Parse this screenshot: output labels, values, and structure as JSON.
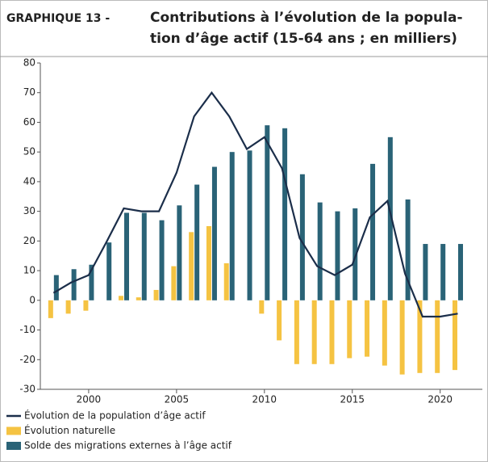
{
  "chart_data": {
    "type": "bar-line",
    "title_label": "GRAPHIQUE 13 -",
    "title": [
      "Contributions à l’évolution de la popula-",
      "tion d’âge actif (15-64 ans ; en milliers)"
    ],
    "x": [
      1998,
      1999,
      2000,
      2001,
      2002,
      2003,
      2004,
      2005,
      2006,
      2007,
      2008,
      2009,
      2010,
      2011,
      2012,
      2013,
      2014,
      2015,
      2016,
      2017,
      2018,
      2019,
      2020,
      2021
    ],
    "xlim": [
      1997.25,
      2022.4
    ],
    "xticks": [
      2000,
      2005,
      2010,
      2015,
      2020
    ],
    "ylim": [
      -30,
      80
    ],
    "yticks": [
      -30,
      -20,
      -10,
      0,
      10,
      20,
      30,
      40,
      50,
      60,
      70,
      80
    ],
    "series": [
      {
        "name": "Évolution de la population d’âge actif",
        "color": "#1b2e4a",
        "mark": "line",
        "values": [
          2.5,
          6,
          8.5,
          19.5,
          31,
          30,
          30,
          43,
          62,
          70,
          62,
          51,
          55,
          44.5,
          21,
          11.5,
          8.5,
          12,
          28,
          33.5,
          9,
          -5.5,
          -5.5,
          -4.5
        ]
      },
      {
        "name": "Évolution naturelle",
        "color": "#f5c342",
        "mark": "bar",
        "values": [
          -6,
          -4.5,
          -3.5,
          0,
          1.5,
          1,
          3.5,
          11.5,
          23,
          25,
          12.5,
          0,
          -4.5,
          -13.5,
          -21.5,
          -21.5,
          -21.5,
          -19.5,
          -19,
          -22,
          -25,
          -24.5,
          -24.5,
          -23.5
        ]
      },
      {
        "name": "Solde des migrations externes à l’âge actif",
        "color": "#2a6377",
        "mark": "bar",
        "values": [
          8.5,
          10.5,
          12,
          19.5,
          29.5,
          29.5,
          27,
          32,
          39,
          45,
          50,
          50.5,
          59,
          58,
          42.5,
          33,
          30,
          31,
          46,
          55,
          34,
          19,
          19,
          19
        ]
      }
    ]
  }
}
